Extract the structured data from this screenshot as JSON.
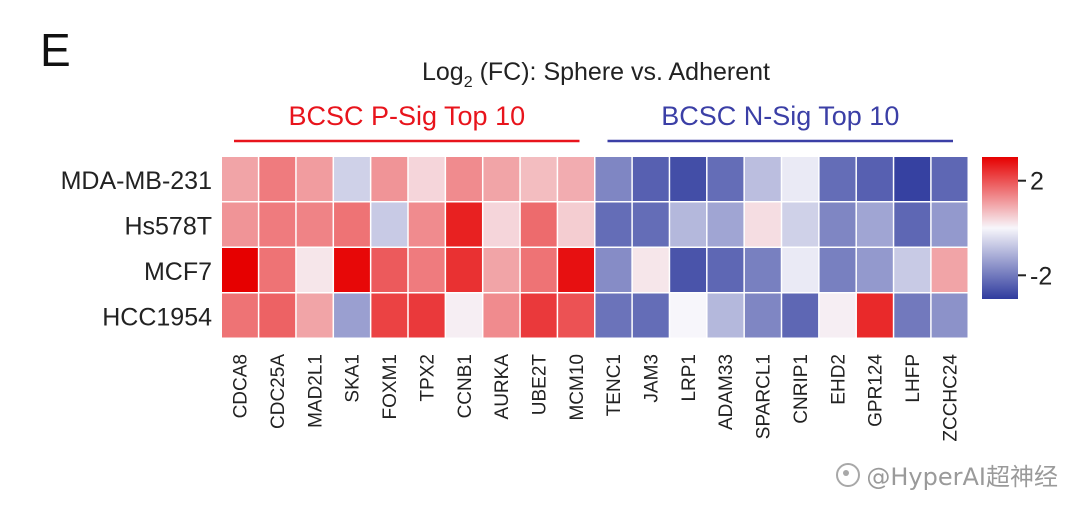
{
  "panel_label": "E",
  "watermark": "@HyperAI超神经",
  "chart_data": {
    "type": "heatmap",
    "title_prefix": "Log",
    "title_subscript": "2",
    "title_suffix": " (FC): Sphere vs. Adherent",
    "groups": [
      {
        "label": "BCSC P-Sig Top 10",
        "color": "#e8141c",
        "start": 0,
        "end": 9
      },
      {
        "label": "BCSC N-Sig Top 10",
        "color": "#3b3fa6",
        "start": 10,
        "end": 19
      }
    ],
    "rows": [
      "MDA-MB-231",
      "Hs578T",
      "MCF7",
      "HCC1954"
    ],
    "columns": [
      "CDCA8",
      "CDC25A",
      "MAD2L1",
      "SKA1",
      "FOXM1",
      "TPX2",
      "CCNB1",
      "AURKA",
      "UBE2T",
      "MCM10",
      "TENC1",
      "JAM3",
      "LRP1",
      "ADAM33",
      "SPARCL1",
      "CNRIP1",
      "EHD2",
      "GPR124",
      "LHFP",
      "ZCCHC24"
    ],
    "values": [
      [
        1.0,
        1.5,
        1.1,
        -0.6,
        1.2,
        0.4,
        1.3,
        1.0,
        0.7,
        0.9,
        -1.8,
        -2.4,
        -2.7,
        -2.2,
        -0.9,
        -0.2,
        -2.2,
        -2.4,
        -2.9,
        -2.3
      ],
      [
        1.2,
        1.5,
        1.4,
        1.6,
        -0.7,
        1.3,
        2.6,
        0.4,
        1.7,
        0.5,
        -2.2,
        -2.2,
        -1.0,
        -1.3,
        0.3,
        -0.6,
        -1.8,
        -1.3,
        -2.3,
        -1.5
      ],
      [
        3.0,
        1.6,
        0.2,
        2.9,
        1.9,
        1.5,
        2.4,
        1.0,
        1.6,
        2.8,
        -1.7,
        0.2,
        -2.6,
        -2.3,
        -1.9,
        -0.2,
        -1.9,
        -1.5,
        -0.7,
        1.0
      ],
      [
        1.6,
        1.8,
        1.0,
        -1.4,
        2.2,
        2.3,
        0.1,
        1.3,
        2.3,
        2.0,
        -2.1,
        -2.2,
        0.0,
        -1.0,
        -1.8,
        -2.3,
        0.1,
        2.5,
        -2.0,
        -1.6
      ]
    ],
    "colorscale": {
      "min": -3,
      "max": 3,
      "low": "#2f3b9e",
      "mid": "#f7f6fb",
      "high": "#e60000"
    },
    "colorbar_ticks": [
      {
        "value": 2,
        "label": "2"
      },
      {
        "value": -2,
        "label": "-2"
      }
    ],
    "grid": false
  }
}
